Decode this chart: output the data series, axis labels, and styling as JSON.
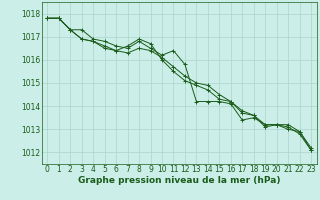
{
  "background_color": "#cceee8",
  "grid_color": "#aad4cc",
  "line_color": "#1a5c1a",
  "marker_color": "#1a5c1a",
  "xlabel": "Graphe pression niveau de la mer (hPa)",
  "xlabel_fontsize": 6.5,
  "tick_fontsize": 5.5,
  "ylim": [
    1011.5,
    1018.5
  ],
  "xlim": [
    -0.5,
    23.5
  ],
  "yticks": [
    1012,
    1013,
    1014,
    1015,
    1016,
    1017,
    1018
  ],
  "xticks": [
    0,
    1,
    2,
    3,
    4,
    5,
    6,
    7,
    8,
    9,
    10,
    11,
    12,
    13,
    14,
    15,
    16,
    17,
    18,
    19,
    20,
    21,
    22,
    23
  ],
  "series": [
    [
      1017.8,
      1017.8,
      1017.3,
      1017.3,
      1016.9,
      1016.8,
      1016.6,
      1016.5,
      1016.8,
      1016.5,
      1016.2,
      1016.4,
      1015.8,
      1014.2,
      1014.2,
      1014.2,
      1014.1,
      1013.4,
      1013.5,
      1013.2,
      1013.2,
      1013.2,
      1012.9,
      1012.1
    ],
    [
      1017.8,
      1017.8,
      1017.3,
      1016.9,
      1016.8,
      1016.6,
      1016.4,
      1016.6,
      1016.9,
      1016.7,
      1016.0,
      1015.5,
      1015.1,
      1014.9,
      1014.7,
      1014.3,
      1014.2,
      1013.7,
      1013.6,
      1013.1,
      1013.2,
      1013.0,
      1012.9,
      1012.2
    ],
    [
      1017.8,
      1017.8,
      1017.3,
      1016.9,
      1016.8,
      1016.5,
      1016.4,
      1016.3,
      1016.5,
      1016.4,
      1016.1,
      1015.7,
      1015.3,
      1015.0,
      1014.9,
      1014.5,
      1014.2,
      1013.8,
      1013.6,
      1013.2,
      1013.2,
      1013.1,
      1012.8,
      1012.1
    ]
  ]
}
